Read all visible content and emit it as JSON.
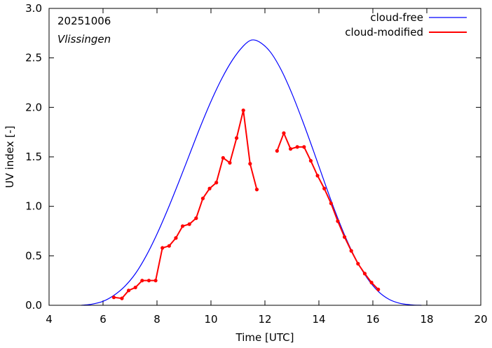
{
  "chart_data": {
    "type": "line",
    "annotations": {
      "date": "20251006",
      "station": "Vlissingen"
    },
    "xlabel": "Time  [UTC]",
    "ylabel": "UV index  [-]",
    "xlim": [
      4,
      20
    ],
    "ylim": [
      0,
      3
    ],
    "xticks": [
      4,
      6,
      8,
      10,
      12,
      14,
      16,
      18,
      20
    ],
    "yticks": [
      0.0,
      0.5,
      1.0,
      1.5,
      2.0,
      2.5,
      3.0
    ],
    "xtick_labels": [
      "4",
      "6",
      "8",
      "10",
      "12",
      "14",
      "16",
      "18",
      "20"
    ],
    "ytick_labels": [
      "0.0",
      "0.5",
      "1.0",
      "1.5",
      "2.0",
      "2.5",
      "3.0"
    ],
    "grid": false,
    "legend_position": "top-right",
    "series": [
      {
        "name": "cloud-free",
        "color": "#0000ff",
        "x": [
          5.2,
          5.6,
          6.0,
          6.4,
          6.8,
          7.2,
          7.6,
          8.0,
          8.4,
          8.8,
          9.2,
          9.6,
          10.0,
          10.4,
          10.8,
          11.2,
          11.5,
          11.8,
          12.2,
          12.6,
          13.0,
          13.4,
          13.8,
          14.2,
          14.6,
          15.0,
          15.4,
          15.8,
          16.2,
          16.6,
          17.0,
          17.4,
          17.8
        ],
        "values": [
          0.0,
          0.012,
          0.04,
          0.1,
          0.19,
          0.32,
          0.5,
          0.72,
          0.97,
          1.24,
          1.52,
          1.8,
          2.06,
          2.29,
          2.48,
          2.62,
          2.68,
          2.66,
          2.56,
          2.38,
          2.14,
          1.86,
          1.56,
          1.25,
          0.95,
          0.68,
          0.45,
          0.27,
          0.14,
          0.06,
          0.02,
          0.005,
          0.0
        ]
      },
      {
        "name": "cloud-modified",
        "color": "#ff0000",
        "x": [
          6.4,
          6.7,
          6.95,
          7.2,
          7.45,
          7.7,
          7.95,
          8.2,
          8.45,
          8.7,
          8.95,
          9.2,
          9.45,
          9.7,
          9.95,
          10.2,
          10.45,
          10.7,
          10.95,
          11.2,
          11.45,
          11.7,
          null,
          12.45,
          12.7,
          12.95,
          13.2,
          13.45,
          13.7,
          13.95,
          14.2,
          14.45,
          14.7,
          14.95,
          15.2,
          15.45,
          15.7,
          15.95,
          16.2
        ],
        "values": [
          0.08,
          0.07,
          0.15,
          0.18,
          0.25,
          0.25,
          0.25,
          0.58,
          0.6,
          0.68,
          0.8,
          0.82,
          0.88,
          1.08,
          1.18,
          1.24,
          1.49,
          1.44,
          1.69,
          1.97,
          1.43,
          1.17,
          null,
          1.56,
          1.74,
          1.58,
          1.6,
          1.6,
          1.46,
          1.31,
          1.18,
          1.03,
          0.85,
          0.69,
          0.55,
          0.42,
          0.32,
          0.23,
          0.16
        ]
      }
    ]
  }
}
